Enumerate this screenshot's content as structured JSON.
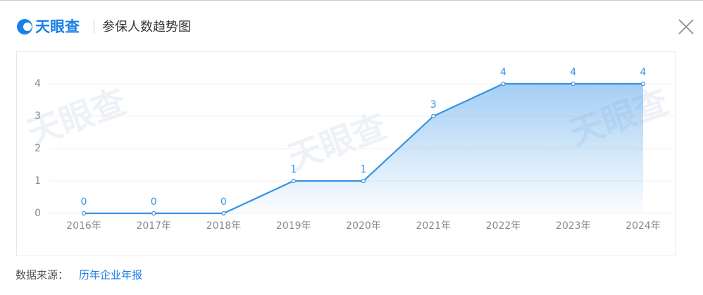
{
  "header": {
    "logo": "天眼查",
    "title": "参保人数趋势图"
  },
  "chart_data": {
    "type": "line",
    "watermark": "天眼查",
    "categories": [
      "2016年",
      "2017年",
      "2018年",
      "2019年",
      "2020年",
      "2021年",
      "2022年",
      "2023年",
      "2024年"
    ],
    "values": [
      0,
      0,
      0,
      1,
      1,
      3,
      4,
      4,
      4
    ],
    "color": "#3592e6",
    "ylim": [
      0,
      4
    ],
    "yticks": [
      0,
      1,
      2,
      3,
      4
    ],
    "grid": true,
    "area": true
  },
  "footer": {
    "label": "数据来源：",
    "link": "历年企业年报"
  }
}
